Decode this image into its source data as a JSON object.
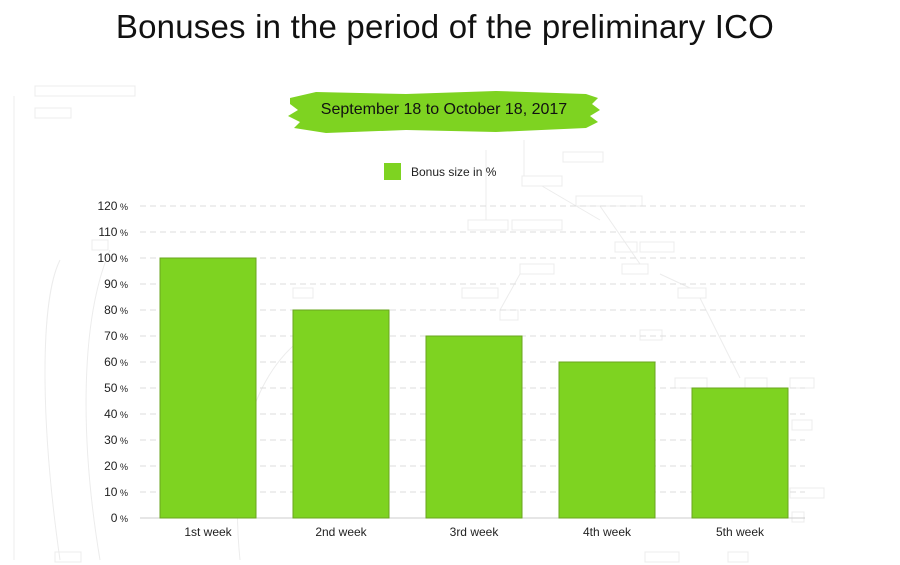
{
  "title": "Bonuses in the period of the preliminary ICO",
  "subtitle": "September 18 to October 18, 2017",
  "colors": {
    "bar": "#7ed321",
    "bar_stroke": "#6aa51f",
    "banner": "#7ed321",
    "grid": "#dddddd",
    "text": "#222222"
  },
  "chart_data": {
    "type": "bar",
    "categories": [
      "1st week",
      "2nd week",
      "3rd week",
      "4th week",
      "5th week"
    ],
    "series": [
      {
        "name": "Bonus size in %",
        "values": [
          100,
          80,
          70,
          60,
          50
        ]
      }
    ],
    "legend": "top-center",
    "ylim": [
      0,
      120
    ],
    "yticks": [
      0,
      10,
      20,
      30,
      40,
      50,
      60,
      70,
      80,
      90,
      100,
      110,
      120
    ],
    "ytick_suffix": " %",
    "grid": true
  }
}
